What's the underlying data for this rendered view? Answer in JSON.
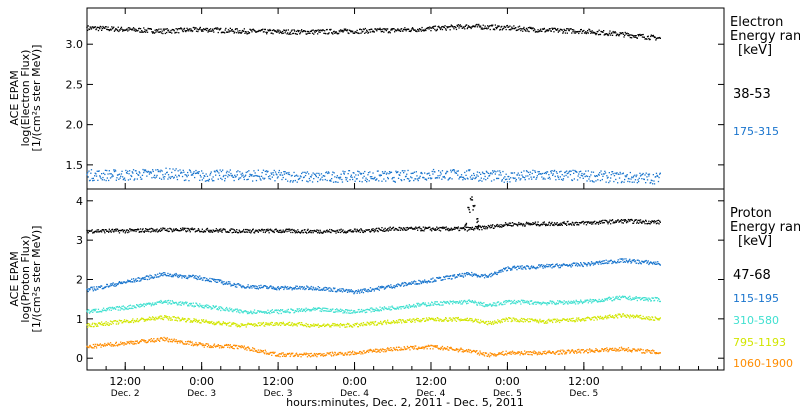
{
  "chart_data": [
    {
      "type": "scatter",
      "panel": "electron",
      "ylabel_lines": [
        "ACE EPAM",
        "log(Electron Flux)",
        "[1/(cm²s ster MeV)]"
      ],
      "ylim": [
        1.2,
        3.45
      ],
      "yticks": [
        1.5,
        2.0,
        2.5,
        3.0
      ],
      "ytick_labels": [
        "1.5",
        "2.0",
        "2.5",
        "3.0"
      ],
      "legend_title": [
        "Electron",
        "Energy ranges",
        "[keV]"
      ],
      "series": [
        {
          "name": "38-53",
          "color": "#000000",
          "x": [
            0,
            6,
            12,
            18,
            24,
            30,
            36,
            42,
            48,
            54,
            60,
            66,
            72,
            78,
            84,
            90
          ],
          "y": [
            3.21,
            3.19,
            3.17,
            3.19,
            3.17,
            3.16,
            3.16,
            3.17,
            3.18,
            3.2,
            3.23,
            3.21,
            3.18,
            3.17,
            3.13,
            3.08
          ]
        },
        {
          "name": "175-315",
          "color": "#1874cd",
          "x": [
            0,
            6,
            12,
            18,
            24,
            30,
            36,
            42,
            48,
            54,
            60,
            66,
            72,
            78,
            84,
            90
          ],
          "y": [
            1.38,
            1.38,
            1.4,
            1.37,
            1.38,
            1.37,
            1.35,
            1.37,
            1.36,
            1.39,
            1.38,
            1.36,
            1.38,
            1.37,
            1.35,
            1.34
          ]
        }
      ]
    },
    {
      "type": "scatter",
      "panel": "proton",
      "ylabel_lines": [
        "ACE EPAM",
        "log(Proton Flux)",
        "[1/(cm²s ster MeV)]"
      ],
      "ylim": [
        -0.3,
        4.3
      ],
      "yticks": [
        0,
        1,
        2,
        3,
        4
      ],
      "ytick_labels": [
        "0",
        "1",
        "2",
        "3",
        "4"
      ],
      "legend_title": [
        "Proton",
        "Energy ranges",
        "[keV]"
      ],
      "series": [
        {
          "name": "47-68",
          "color": "#000000",
          "x": [
            0,
            6,
            12,
            18,
            24,
            30,
            36,
            42,
            48,
            54,
            60,
            63,
            66,
            72,
            78,
            84,
            90
          ],
          "y": [
            3.25,
            3.25,
            3.28,
            3.27,
            3.25,
            3.25,
            3.24,
            3.25,
            3.3,
            3.3,
            3.3,
            3.35,
            3.42,
            3.43,
            3.45,
            3.5,
            3.47
          ]
        },
        {
          "name": "115-195",
          "color": "#1874cd",
          "x": [
            0,
            6,
            12,
            18,
            24,
            30,
            36,
            42,
            48,
            54,
            60,
            63,
            66,
            72,
            78,
            84,
            90
          ],
          "y": [
            1.75,
            1.95,
            2.15,
            2.05,
            1.85,
            1.8,
            1.8,
            1.7,
            1.85,
            2.0,
            2.15,
            2.1,
            2.3,
            2.35,
            2.4,
            2.5,
            2.42
          ]
        },
        {
          "name": "310-580",
          "color": "#40e0d0",
          "x": [
            0,
            6,
            12,
            18,
            24,
            30,
            36,
            42,
            48,
            54,
            60,
            63,
            66,
            72,
            78,
            84,
            90
          ],
          "y": [
            1.2,
            1.3,
            1.45,
            1.35,
            1.2,
            1.2,
            1.25,
            1.2,
            1.3,
            1.4,
            1.45,
            1.35,
            1.45,
            1.42,
            1.45,
            1.55,
            1.5
          ]
        },
        {
          "name": "795-1193",
          "color": "#d2e600",
          "x": [
            0,
            6,
            12,
            18,
            24,
            30,
            36,
            42,
            48,
            54,
            60,
            63,
            66,
            72,
            78,
            84,
            90
          ],
          "y": [
            0.85,
            0.95,
            1.05,
            0.95,
            0.85,
            0.9,
            0.85,
            0.85,
            0.95,
            1.0,
            1.0,
            0.9,
            1.0,
            0.95,
            1.0,
            1.1,
            1.0
          ]
        },
        {
          "name": "1060-1900",
          "color": "#ff8c00",
          "x": [
            0,
            6,
            12,
            18,
            24,
            30,
            36,
            42,
            48,
            54,
            60,
            63,
            66,
            72,
            78,
            84,
            90
          ],
          "y": [
            0.3,
            0.4,
            0.5,
            0.35,
            0.3,
            0.1,
            0.1,
            0.15,
            0.25,
            0.3,
            0.2,
            0.1,
            0.15,
            0.15,
            0.2,
            0.25,
            0.15
          ]
        }
      ],
      "spike": {
        "x": [
          59.4,
          59.9,
          60.3,
          60.7,
          61.1,
          61.4
        ],
        "y": [
          3.4,
          3.8,
          4.05,
          3.85,
          3.5,
          3.35
        ]
      }
    }
  ],
  "xaxis": {
    "xlim": [
      0,
      100
    ],
    "ticks": [
      {
        "x": 6,
        "time": "12:00",
        "day": "Dec. 2"
      },
      {
        "x": 18,
        "time": "0:00",
        "day": "Dec. 3"
      },
      {
        "x": 30,
        "time": "12:00",
        "day": "Dec. 3"
      },
      {
        "x": 42,
        "time": "0:00",
        "day": "Dec. 4"
      },
      {
        "x": 54,
        "time": "12:00",
        "day": "Dec. 4"
      },
      {
        "x": 66,
        "time": "0:00",
        "day": "Dec. 5"
      },
      {
        "x": 78,
        "time": "12:00",
        "day": "Dec. 5"
      }
    ],
    "label": "hours:minutes, Dec.  2, 2011 - Dec.  5, 2011"
  }
}
